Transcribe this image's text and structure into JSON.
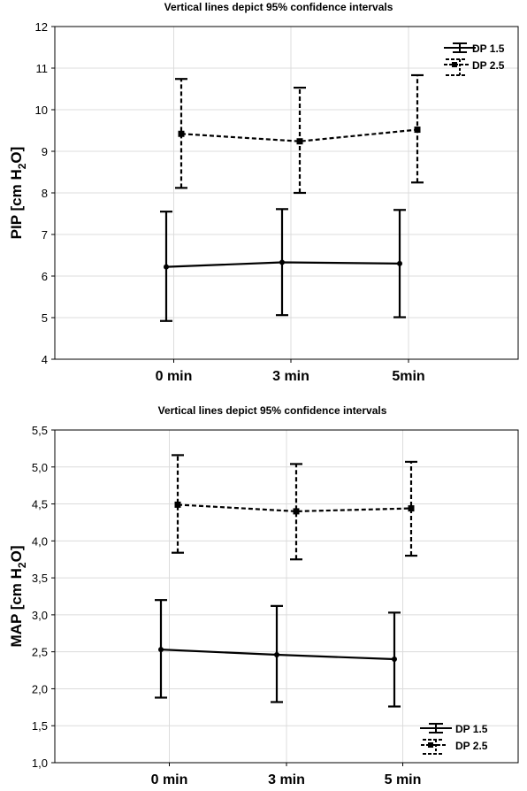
{
  "chart_data": [
    {
      "type": "line",
      "title": "Vertical lines depict 95% confidence intervals",
      "ylabel_main": "PIP [cm H",
      "ylabel_sub": "2",
      "ylabel_end": "O]",
      "ylim": [
        4,
        12
      ],
      "yticks": [
        "4",
        "5",
        "6",
        "7",
        "8",
        "9",
        "10",
        "11",
        "12"
      ],
      "categories": [
        "0 min",
        "3 min",
        "5min"
      ],
      "grid": true,
      "legend_position": "top-right",
      "series": [
        {
          "name": "DP 1.5",
          "style": "solid",
          "values": [
            6.22,
            6.33,
            6.3
          ],
          "ci_low": [
            4.92,
            5.06,
            5.01
          ],
          "ci_high": [
            7.55,
            7.61,
            7.59
          ]
        },
        {
          "name": "DP 2.5",
          "style": "dashed",
          "values": [
            9.42,
            9.24,
            9.52
          ],
          "ci_low": [
            8.12,
            8.0,
            8.25
          ],
          "ci_high": [
            10.74,
            10.53,
            10.83
          ]
        }
      ]
    },
    {
      "type": "line",
      "title": "Vertical lines depict 95% confidence intervals",
      "ylabel_main": "MAP [cm H",
      "ylabel_sub": "2",
      "ylabel_end": "O]",
      "ylim": [
        1.0,
        5.5
      ],
      "yticks": [
        "1,0",
        "1,5",
        "2,0",
        "2,5",
        "3,0",
        "3,5",
        "4,0",
        "4,5",
        "5,0",
        "5,5"
      ],
      "categories": [
        "0 min",
        "3 min",
        "5 min"
      ],
      "grid": true,
      "legend_position": "bottom-right",
      "series": [
        {
          "name": "DP 1.5",
          "style": "solid",
          "values": [
            2.53,
            2.46,
            2.4
          ],
          "ci_low": [
            1.88,
            1.82,
            1.76
          ],
          "ci_high": [
            3.2,
            3.12,
            3.03
          ]
        },
        {
          "name": "DP 2.5",
          "style": "dashed",
          "values": [
            4.49,
            4.4,
            4.44
          ],
          "ci_low": [
            3.84,
            3.75,
            3.8
          ],
          "ci_high": [
            5.16,
            5.04,
            5.07
          ]
        }
      ]
    }
  ]
}
